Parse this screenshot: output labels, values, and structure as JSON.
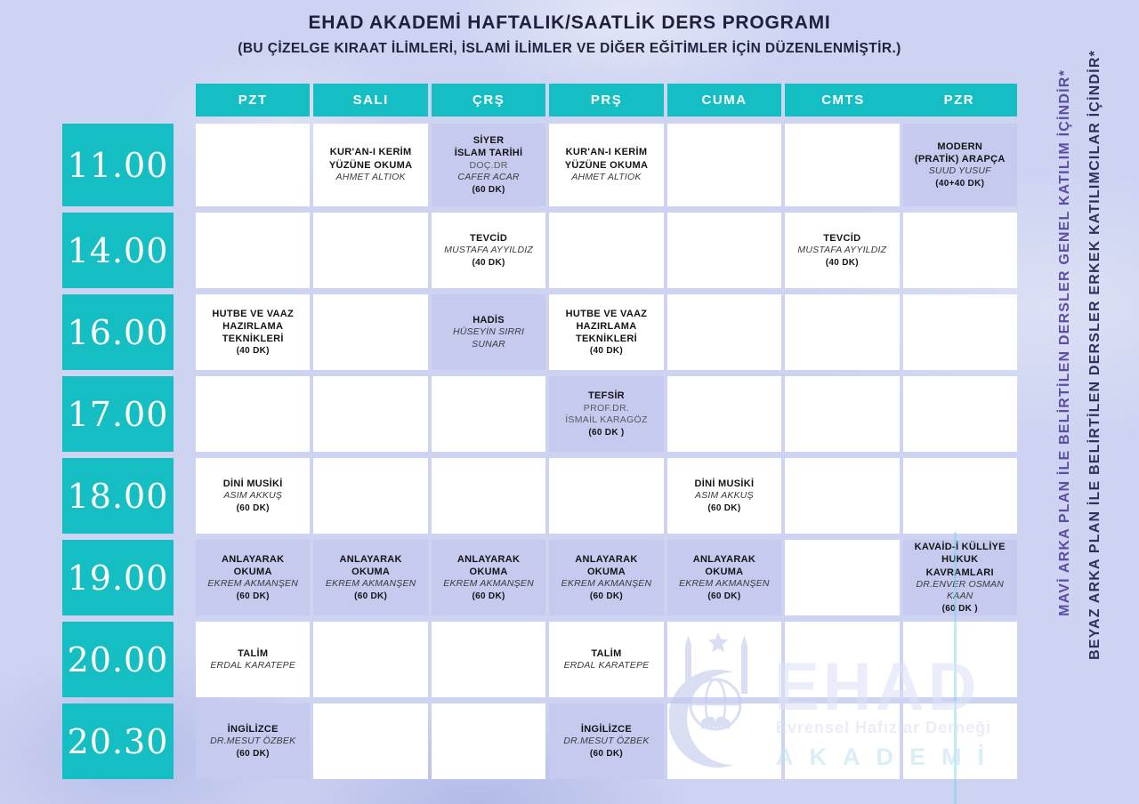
{
  "header": {
    "title": "EHAD AKADEMİ HAFTALIK/SAATLİK DERS PROGRAMI",
    "subtitle": "(BU ÇİZELGE KIRAAT İLİMLERİ, İSLAMİ İLİMLER VE DİĞER EĞİTİMLER İÇİN DÜZENLENMİŞTİR.)"
  },
  "days": [
    "PZT",
    "SALI",
    "ÇRŞ",
    "PRŞ",
    "CUMA",
    "CMTS",
    "PZR"
  ],
  "legend": {
    "blue_note": "MAVİ ARKA PLAN İLE BELİRTİLEN DERSLER GENEL KATILIM İÇİNDİR*",
    "white_note": "BEYAZ ARKA PLAN İLE BELİRTİLEN DERSLER ERKEK KATILIMCILAR İÇİNDİR*"
  },
  "watermark": {
    "name": "EHAD",
    "org": "Evrensel Hafızlar Derneği",
    "akademi": "AKADEMİ"
  },
  "colors": {
    "teal": "#15bec3",
    "cell_blue": "#c5caee",
    "cell_white": "#ffffff",
    "background": "#cdd3f1",
    "title_text": "#20203e",
    "note_blue_text": "#5b4da3",
    "note_white_text": "#30305e"
  },
  "schedule": {
    "rows": [
      {
        "time": "11.00",
        "tall": true,
        "cells": [
          {
            "bg": "white",
            "lines": []
          },
          {
            "bg": "white",
            "lines": [
              {
                "t": "KUR'AN-I KERİM",
                "r": "title"
              },
              {
                "t": "YÜZÜNE OKUMA",
                "r": "title"
              },
              {
                "t": "AHMET ALTIOK",
                "r": "name"
              }
            ]
          },
          {
            "bg": "blue",
            "lines": [
              {
                "t": "SİYER",
                "r": "title"
              },
              {
                "t": "İSLAM TARİHİ",
                "r": "title"
              },
              {
                "t": "DOÇ.DR",
                "r": "rank"
              },
              {
                "t": "CAFER ACAR",
                "r": "name"
              },
              {
                "t": "(60 DK)",
                "r": "dur"
              }
            ]
          },
          {
            "bg": "white",
            "lines": [
              {
                "t": "KUR'AN-I KERİM",
                "r": "title"
              },
              {
                "t": "YÜZÜNE OKUMA",
                "r": "title"
              },
              {
                "t": "AHMET ALTIOK",
                "r": "name"
              }
            ]
          },
          {
            "bg": "white",
            "lines": []
          },
          {
            "bg": "white",
            "lines": []
          },
          {
            "bg": "blue",
            "lines": [
              {
                "t": "MODERN",
                "r": "title"
              },
              {
                "t": "(PRATİK) ARAPÇA",
                "r": "title"
              },
              {
                "t": "SUUD YUSUF",
                "r": "name"
              },
              {
                "t": "(40+40 DK)",
                "r": "dur"
              }
            ]
          }
        ]
      },
      {
        "time": "14.00",
        "tall": false,
        "cells": [
          {
            "bg": "white",
            "lines": []
          },
          {
            "bg": "white",
            "lines": []
          },
          {
            "bg": "white",
            "lines": [
              {
                "t": "TEVCİD",
                "r": "title"
              },
              {
                "t": "MUSTAFA AYYILDIZ",
                "r": "name"
              },
              {
                "t": "(40 DK)",
                "r": "dur"
              }
            ]
          },
          {
            "bg": "white",
            "lines": []
          },
          {
            "bg": "white",
            "lines": []
          },
          {
            "bg": "white",
            "lines": [
              {
                "t": "TEVCİD",
                "r": "title"
              },
              {
                "t": "MUSTAFA AYYILDIZ",
                "r": "name"
              },
              {
                "t": "(40 DK)",
                "r": "dur"
              }
            ]
          },
          {
            "bg": "white",
            "lines": []
          }
        ]
      },
      {
        "time": "16.00",
        "tall": false,
        "cells": [
          {
            "bg": "white",
            "lines": [
              {
                "t": "HUTBE VE VAAZ",
                "r": "title"
              },
              {
                "t": "HAZIRLAMA",
                "r": "title"
              },
              {
                "t": "TEKNİKLERİ",
                "r": "title"
              },
              {
                "t": "(40 DK)",
                "r": "dur"
              }
            ]
          },
          {
            "bg": "white",
            "lines": []
          },
          {
            "bg": "blue",
            "lines": [
              {
                "t": "HADİS",
                "r": "title"
              },
              {
                "t": "HÜSEYİN SIRRI",
                "r": "name"
              },
              {
                "t": "SUNAR",
                "r": "name"
              }
            ]
          },
          {
            "bg": "white",
            "lines": [
              {
                "t": "HUTBE VE VAAZ",
                "r": "title"
              },
              {
                "t": "HAZIRLAMA",
                "r": "title"
              },
              {
                "t": "TEKNİKLERİ",
                "r": "title"
              },
              {
                "t": "(40 DK)",
                "r": "dur"
              }
            ]
          },
          {
            "bg": "white",
            "lines": []
          },
          {
            "bg": "white",
            "lines": []
          },
          {
            "bg": "white",
            "lines": []
          }
        ]
      },
      {
        "time": "17.00",
        "tall": false,
        "cells": [
          {
            "bg": "white",
            "lines": []
          },
          {
            "bg": "white",
            "lines": []
          },
          {
            "bg": "white",
            "lines": []
          },
          {
            "bg": "blue",
            "lines": [
              {
                "t": "TEFSİR",
                "r": "title"
              },
              {
                "t": "PROF.DR.",
                "r": "rank"
              },
              {
                "t": "İSMAİL KARAGÖZ",
                "r": "rank"
              },
              {
                "t": "(60 DK )",
                "r": "dur"
              }
            ]
          },
          {
            "bg": "white",
            "lines": []
          },
          {
            "bg": "white",
            "lines": []
          },
          {
            "bg": "white",
            "lines": []
          }
        ]
      },
      {
        "time": "18.00",
        "tall": false,
        "cells": [
          {
            "bg": "white",
            "lines": [
              {
                "t": "DİNİ MUSİKİ",
                "r": "title"
              },
              {
                "t": "ASIM AKKUŞ",
                "r": "name"
              },
              {
                "t": "(60 DK)",
                "r": "dur"
              }
            ]
          },
          {
            "bg": "white",
            "lines": []
          },
          {
            "bg": "white",
            "lines": []
          },
          {
            "bg": "white",
            "lines": []
          },
          {
            "bg": "white",
            "lines": [
              {
                "t": "DİNİ MUSİKİ",
                "r": "title"
              },
              {
                "t": "ASIM AKKUŞ",
                "r": "name"
              },
              {
                "t": "(60 DK)",
                "r": "dur"
              }
            ]
          },
          {
            "bg": "white",
            "lines": []
          },
          {
            "bg": "white",
            "lines": []
          }
        ]
      },
      {
        "time": "19.00",
        "tall": false,
        "cells": [
          {
            "bg": "blue",
            "lines": [
              {
                "t": "ANLAYARAK",
                "r": "title"
              },
              {
                "t": "OKUMA",
                "r": "title"
              },
              {
                "t": "EKREM AKMANŞEN",
                "r": "name"
              },
              {
                "t": "(60 DK)",
                "r": "dur"
              }
            ]
          },
          {
            "bg": "blue",
            "lines": [
              {
                "t": "ANLAYARAK",
                "r": "title"
              },
              {
                "t": "OKUMA",
                "r": "title"
              },
              {
                "t": "EKREM AKMANŞEN",
                "r": "name"
              },
              {
                "t": "(60 DK)",
                "r": "dur"
              }
            ]
          },
          {
            "bg": "blue",
            "lines": [
              {
                "t": "ANLAYARAK",
                "r": "title"
              },
              {
                "t": "OKUMA",
                "r": "title"
              },
              {
                "t": "EKREM AKMANŞEN",
                "r": "name"
              },
              {
                "t": "(60 DK)",
                "r": "dur"
              }
            ]
          },
          {
            "bg": "blue",
            "lines": [
              {
                "t": "ANLAYARAK",
                "r": "title"
              },
              {
                "t": "OKUMA",
                "r": "title"
              },
              {
                "t": "EKREM AKMANŞEN",
                "r": "name"
              },
              {
                "t": "(60 DK)",
                "r": "dur"
              }
            ]
          },
          {
            "bg": "blue",
            "lines": [
              {
                "t": "ANLAYARAK",
                "r": "title"
              },
              {
                "t": "OKUMA",
                "r": "title"
              },
              {
                "t": "EKREM AKMANŞEN",
                "r": "name"
              },
              {
                "t": "(60 DK)",
                "r": "dur"
              }
            ]
          },
          {
            "bg": "white",
            "lines": []
          },
          {
            "bg": "blue",
            "lines": [
              {
                "t": "KAVAİD-İ KÜLLİYE",
                "r": "title"
              },
              {
                "t": "HUKUK",
                "r": "title"
              },
              {
                "t": "KAVRAMLARI",
                "r": "title"
              },
              {
                "t": "DR.ENVER OSMAN",
                "r": "name"
              },
              {
                "t": "KAAN",
                "r": "name"
              },
              {
                "t": "(60 DK )",
                "r": "dur"
              }
            ]
          }
        ]
      },
      {
        "time": "20.00",
        "tall": false,
        "cells": [
          {
            "bg": "white",
            "lines": [
              {
                "t": "TALİM",
                "r": "title"
              },
              {
                "t": "ERDAL KARATEPE",
                "r": "name"
              }
            ]
          },
          {
            "bg": "white",
            "lines": []
          },
          {
            "bg": "white",
            "lines": []
          },
          {
            "bg": "white",
            "lines": [
              {
                "t": "TALİM",
                "r": "title"
              },
              {
                "t": "ERDAL KARATEPE",
                "r": "name"
              }
            ]
          },
          {
            "bg": "white",
            "lines": []
          },
          {
            "bg": "white",
            "lines": []
          },
          {
            "bg": "white",
            "lines": []
          }
        ]
      },
      {
        "time": "20.30",
        "tall": false,
        "cells": [
          {
            "bg": "blue",
            "lines": [
              {
                "t": "İNGİLİZCE",
                "r": "title"
              },
              {
                "t": "DR.MESUT ÖZBEK",
                "r": "name"
              },
              {
                "t": "(60 DK)",
                "r": "dur"
              }
            ]
          },
          {
            "bg": "white",
            "lines": []
          },
          {
            "bg": "white",
            "lines": []
          },
          {
            "bg": "blue",
            "lines": [
              {
                "t": "İNGİLİZCE",
                "r": "title"
              },
              {
                "t": "DR.MESUT ÖZBEK",
                "r": "name"
              },
              {
                "t": "(60 DK)",
                "r": "dur"
              }
            ]
          },
          {
            "bg": "white",
            "lines": []
          },
          {
            "bg": "white",
            "lines": []
          },
          {
            "bg": "white",
            "lines": []
          }
        ]
      }
    ]
  }
}
